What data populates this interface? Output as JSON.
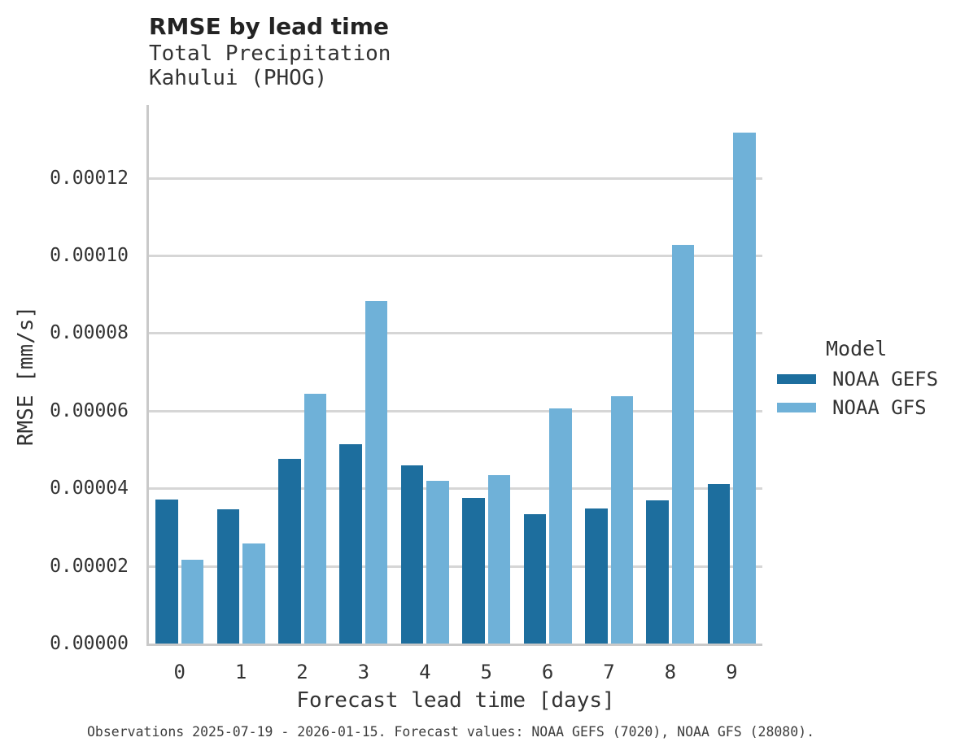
{
  "chart_data": {
    "type": "bar",
    "title": "RMSE by lead time",
    "subtitle": [
      "Total Precipitation",
      "Kahului (PHOG)"
    ],
    "xlabel": "Forecast lead time [days]",
    "ylabel": "RMSE [mm/s]",
    "categories": [
      "0",
      "1",
      "2",
      "3",
      "4",
      "5",
      "6",
      "7",
      "8",
      "9"
    ],
    "series": [
      {
        "name": "NOAA GEFS",
        "color": "#1d6e9e",
        "values": [
          3.72e-05,
          3.47e-05,
          4.75e-05,
          5.14e-05,
          4.6e-05,
          3.76e-05,
          3.34e-05,
          3.49e-05,
          3.68e-05,
          4.1e-05
        ]
      },
      {
        "name": "NOAA GFS",
        "color": "#6fb1d8",
        "values": [
          2.17e-05,
          2.57e-05,
          6.44e-05,
          8.82e-05,
          4.2e-05,
          4.35e-05,
          6.06e-05,
          6.38e-05,
          0.0001027,
          0.0001317
        ]
      }
    ],
    "ylim": [
      0,
      0.0001388
    ],
    "yticks": [
      0,
      2e-05,
      4e-05,
      6e-05,
      8e-05,
      0.0001,
      0.00012
    ],
    "ytick_format_decimals": 5,
    "grid": "horizontal",
    "legend_title": "Model",
    "legend_position": "right",
    "footnote": "Observations 2025-07-19 - 2026-01-15. Forecast values: NOAA GEFS (7020), NOAA GFS (28080).",
    "colors": {
      "gridline": "#d6d6d6",
      "spine": "#c9c9c9",
      "title_text": "#232323",
      "body_text": "#333333"
    }
  }
}
